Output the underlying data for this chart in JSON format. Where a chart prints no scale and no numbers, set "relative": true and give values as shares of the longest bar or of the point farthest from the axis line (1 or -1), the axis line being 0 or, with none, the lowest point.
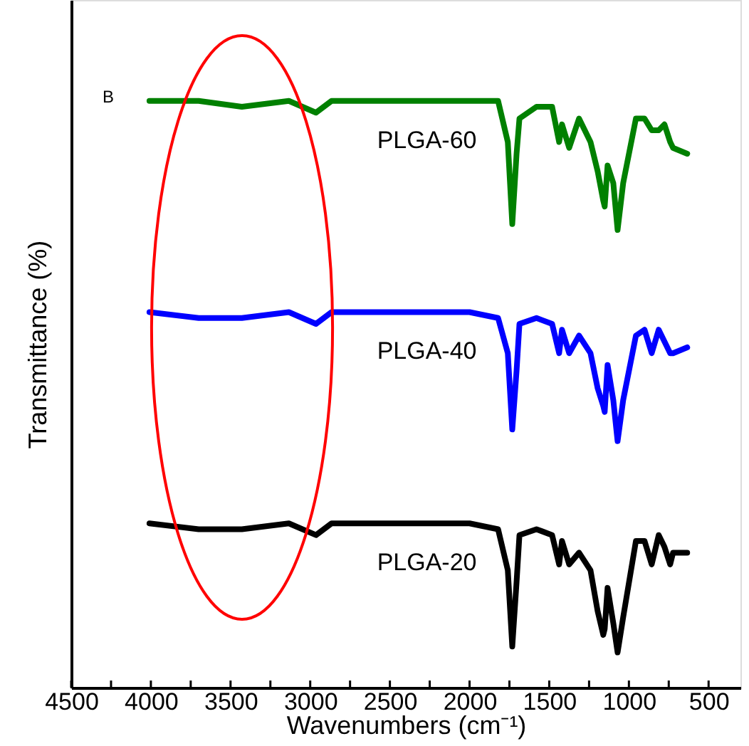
{
  "chart_data": {
    "type": "line",
    "relative": true,
    "xlabel": "Wavenumbers (cm⁻¹)",
    "ylabel": "Transmittance (%)",
    "annotations": [
      "B"
    ],
    "xlim": [
      4500,
      300
    ],
    "xticks": [
      4500,
      {
        "value": 4250,
        "label": null
      },
      4000,
      {
        "value": 3750,
        "label": null
      },
      3500,
      {
        "value": 3250,
        "label": null
      },
      3000,
      {
        "value": 2750,
        "label": null
      },
      2500,
      {
        "value": 2250,
        "label": null
      },
      2000,
      {
        "value": 1750,
        "label": null
      },
      1500,
      {
        "value": 1250,
        "label": null
      },
      1000,
      {
        "value": 750,
        "label": null
      },
      500
    ],
    "tick_labels": "x",
    "grid": false,
    "marker": "none",
    "line_style": "solid",
    "x": [
      4009,
      3700,
      3429,
      3134,
      2964,
      2866,
      2500,
      2000,
      1821,
      1760,
      1732,
      1705,
      1687,
      1580,
      1482,
      1438,
      1420,
      1375,
      1313,
      1241,
      1196,
      1161,
      1152,
      1134,
      1098,
      1071,
      1036,
      956,
      902,
      857,
      813,
      777,
      741,
      723,
      634
    ],
    "series": [
      {
        "name": "PLGA-60",
        "color": "#008000",
        "values": [
          1.0,
          1.0,
          0.99,
          1.0,
          0.98,
          1.0,
          1.0,
          1.0,
          1.0,
          0.93,
          0.79,
          0.91,
          0.97,
          0.99,
          0.99,
          0.93,
          0.96,
          0.92,
          0.97,
          0.93,
          0.88,
          0.83,
          0.82,
          0.89,
          0.86,
          0.78,
          0.86,
          0.97,
          0.97,
          0.95,
          0.95,
          0.96,
          0.93,
          0.92,
          0.91
        ]
      },
      {
        "name": "PLGA-40",
        "color": "#0000ff",
        "values": [
          0.64,
          0.63,
          0.63,
          0.64,
          0.62,
          0.64,
          0.64,
          0.64,
          0.63,
          0.57,
          0.44,
          0.54,
          0.62,
          0.63,
          0.62,
          0.57,
          0.61,
          0.57,
          0.6,
          0.57,
          0.51,
          0.48,
          0.47,
          0.55,
          0.49,
          0.42,
          0.49,
          0.6,
          0.61,
          0.57,
          0.61,
          0.59,
          0.57,
          0.57,
          0.58
        ]
      },
      {
        "name": "PLGA-20",
        "color": "#000000",
        "values": [
          0.28,
          0.27,
          0.27,
          0.28,
          0.26,
          0.28,
          0.28,
          0.28,
          0.27,
          0.2,
          0.07,
          0.18,
          0.26,
          0.27,
          0.26,
          0.21,
          0.25,
          0.21,
          0.23,
          0.2,
          0.13,
          0.09,
          0.1,
          0.17,
          0.11,
          0.06,
          0.12,
          0.25,
          0.25,
          0.21,
          0.26,
          0.24,
          0.21,
          0.23,
          0.23
        ]
      }
    ]
  }
}
